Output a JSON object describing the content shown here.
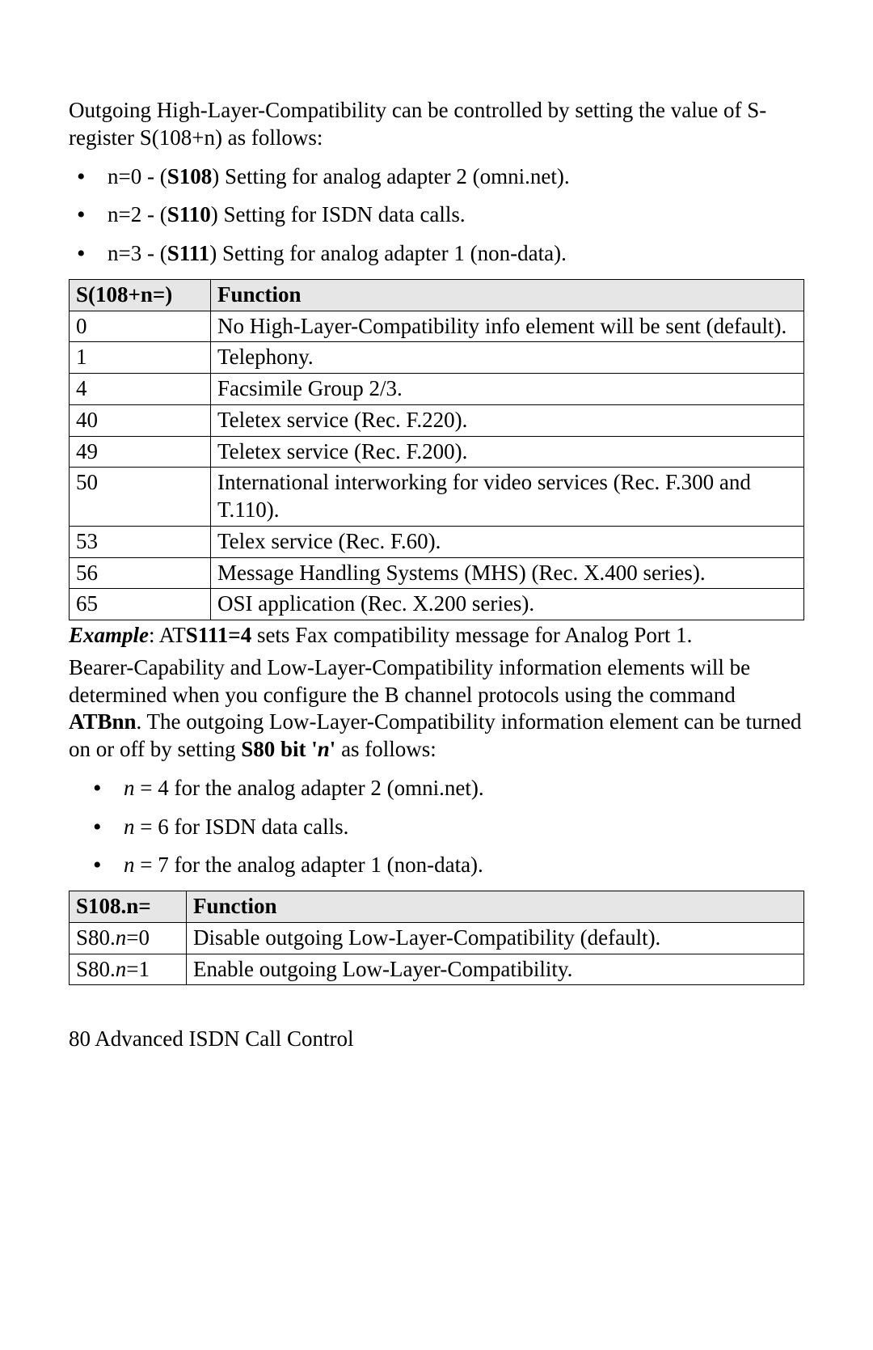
{
  "intro": "Outgoing High-Layer-Compatibility can be controlled by setting the value of S-register S(108+n) as follows:",
  "bullets1": [
    {
      "pre": "n=0 - (",
      "bold": "S108",
      "post": ") Setting for analog adapter 2 (omni.net)."
    },
    {
      "pre": "n=2 - (",
      "bold": "S110",
      "post": ") Setting for ISDN data calls."
    },
    {
      "pre": "n=3 - (",
      "bold": "S111",
      "post": ") Setting for analog adapter 1 (non-data)."
    }
  ],
  "table1": {
    "head": [
      "S(108+n=)",
      "Function"
    ],
    "rows": [
      [
        "0",
        "No High-Layer-Compatibility info element will be sent (default)."
      ],
      [
        "1",
        "Telephony."
      ],
      [
        "4",
        "Facsimile Group 2/3."
      ],
      [
        "40",
        "Teletex service (Rec. F.220)."
      ],
      [
        "49",
        "Teletex service (Rec. F.200)."
      ],
      [
        "50",
        "International interworking for video services (Rec. F.300 and T.110)."
      ],
      [
        "53",
        "Telex service (Rec. F.60)."
      ],
      [
        "56",
        "Message Handling Systems (MHS) (Rec. X.400 series)."
      ],
      [
        "65",
        "OSI application (Rec. X.200 series)."
      ]
    ]
  },
  "example": {
    "label_bi": "Example",
    "mid1": ": AT",
    "bold": "S111=4",
    "mid2": " sets Fax compatibility message for Analog Port 1."
  },
  "para2": {
    "t1": "Bearer-Capability and Low-Layer-Compatibility information elements will be determined when you configure the B channel protocols using the command ",
    "b1": "ATBnn",
    "t2": ". The outgoing Low-Layer-Compatibility information element can be turned on or off by setting ",
    "b2a": "S80 bit '",
    "b2i": "n",
    "b2b": "'",
    "t3": " as follows:"
  },
  "bullets2": [
    {
      "ivar": "n",
      "rest": " = 4 for the analog adapter 2 (omni.net)."
    },
    {
      "ivar": "n",
      "rest": " = 6 for ISDN data calls."
    },
    {
      "ivar": "n",
      "rest": " = 7 for the analog adapter 1 (non-data)."
    }
  ],
  "table2": {
    "head": [
      "S108.n=",
      "Function"
    ],
    "rows": [
      {
        "pre": "S80.",
        "ivar": "n",
        "post": "=0",
        "func": "Disable outgoing Low-Layer-Compatibility (default)."
      },
      {
        "pre": "S80.",
        "ivar": "n",
        "post": "=1",
        "func": "Enable outgoing  Low-Layer-Compatibility."
      }
    ]
  },
  "footer": "80  Advanced ISDN Call Control"
}
